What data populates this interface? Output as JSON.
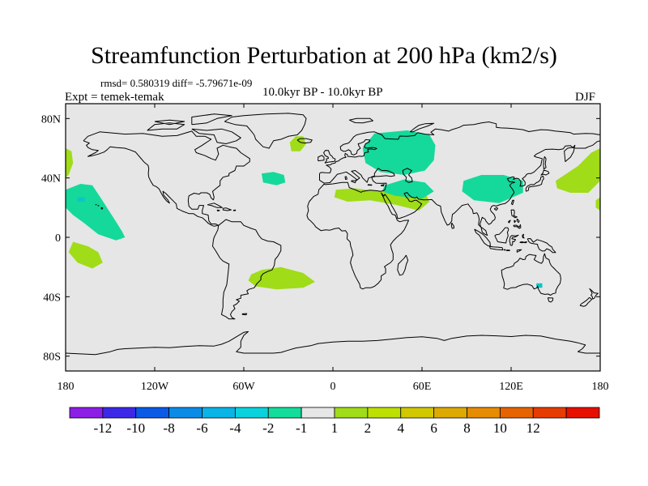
{
  "title": "Streamfunction Perturbation at 200 hPa (km2/s)",
  "stats": "rmsd= 0.580319 diff= -5.79671e-09",
  "experiment": "Expt = temek-temak",
  "period": "10.0kyr BP - 10.0kyr BP",
  "season": "DJF",
  "map": {
    "projection": "cylindrical equidistant",
    "lon_range": [
      -180,
      180
    ],
    "lat_range": [
      -90,
      90
    ],
    "background_color": "#e6e6e6",
    "coastline_color": "#000000",
    "x_ticks": [
      {
        "lon": -180,
        "label": "180"
      },
      {
        "lon": -120,
        "label": "120W"
      },
      {
        "lon": -60,
        "label": "60W"
      },
      {
        "lon": 0,
        "label": "0"
      },
      {
        "lon": 60,
        "label": "60E"
      },
      {
        "lon": 120,
        "label": "120E"
      },
      {
        "lon": 180,
        "label": "180"
      }
    ],
    "y_ticks": [
      {
        "lat": 80,
        "label": "80N"
      },
      {
        "lat": 40,
        "label": "40N"
      },
      {
        "lat": 0,
        "label": "0"
      },
      {
        "lat": -40,
        "label": "40S"
      },
      {
        "lat": -80,
        "label": "80S"
      }
    ],
    "anomalies": [
      {
        "name": "north-pacific-negative",
        "class": "-2 to -1",
        "color": "#14d99a",
        "points": [
          [
            -180,
            32
          ],
          [
            -170,
            36
          ],
          [
            -162,
            35
          ],
          [
            -156,
            26
          ],
          [
            -147,
            12
          ],
          [
            -142,
            4
          ],
          [
            -140,
            0
          ],
          [
            -146,
            -2
          ],
          [
            -158,
            2
          ],
          [
            -168,
            10
          ],
          [
            -175,
            15
          ],
          [
            -180,
            20
          ]
        ]
      },
      {
        "name": "north-pacific-core",
        "class": "-4 to -2",
        "color": "#0fc4c4",
        "points": [
          [
            -172,
            27
          ],
          [
            -167,
            27
          ],
          [
            -167,
            24
          ],
          [
            -172,
            24
          ]
        ]
      },
      {
        "name": "south-pacific-positive",
        "class": "1 to 2",
        "color": "#a0dc18",
        "points": [
          [
            -175,
            -3
          ],
          [
            -165,
            -6
          ],
          [
            -158,
            -10
          ],
          [
            -155,
            -17
          ],
          [
            -162,
            -21
          ],
          [
            -172,
            -17
          ],
          [
            -178,
            -10
          ]
        ]
      },
      {
        "name": "dateline-west-positive",
        "class": "1 to 2",
        "color": "#a0dc18",
        "points": [
          [
            -180,
            60
          ],
          [
            -176,
            58
          ],
          [
            -175,
            50
          ],
          [
            -178,
            42
          ],
          [
            -180,
            40
          ]
        ]
      },
      {
        "name": "greenland-sea-positive",
        "class": "1 to 2",
        "color": "#a0dc18",
        "points": [
          [
            -25,
            68
          ],
          [
            -20,
            68
          ],
          [
            -18,
            63
          ],
          [
            -22,
            58
          ],
          [
            -28,
            58
          ],
          [
            -29,
            64
          ]
        ]
      },
      {
        "name": "mid-atlantic-negative",
        "class": "-2 to -1",
        "color": "#14d99a",
        "points": [
          [
            -48,
            43
          ],
          [
            -40,
            44
          ],
          [
            -33,
            42
          ],
          [
            -32,
            37
          ],
          [
            -38,
            35
          ],
          [
            -47,
            37
          ]
        ]
      },
      {
        "name": "south-atlantic-positive",
        "class": "1 to 2",
        "color": "#a0dc18",
        "points": [
          [
            -55,
            -25
          ],
          [
            -48,
            -22
          ],
          [
            -35,
            -20
          ],
          [
            -20,
            -24
          ],
          [
            -12,
            -30
          ],
          [
            -20,
            -34
          ],
          [
            -38,
            -35
          ],
          [
            -52,
            -33
          ],
          [
            -57,
            -29
          ]
        ]
      },
      {
        "name": "sahara-positive",
        "class": "1 to 2",
        "color": "#a0dc18",
        "points": [
          [
            2,
            32
          ],
          [
            15,
            33
          ],
          [
            30,
            31
          ],
          [
            45,
            33
          ],
          [
            62,
            30
          ],
          [
            65,
            24
          ],
          [
            58,
            18
          ],
          [
            42,
            22
          ],
          [
            25,
            25
          ],
          [
            10,
            24
          ],
          [
            1,
            27
          ]
        ]
      },
      {
        "name": "eurasia-negative",
        "class": "-2 to -1",
        "color": "#14d99a",
        "points": [
          [
            20,
            60
          ],
          [
            28,
            70
          ],
          [
            50,
            72
          ],
          [
            65,
            69
          ],
          [
            69,
            62
          ],
          [
            68,
            52
          ],
          [
            62,
            45
          ],
          [
            48,
            42
          ],
          [
            32,
            44
          ],
          [
            22,
            50
          ]
        ]
      },
      {
        "name": "middle-east-negative",
        "class": "-2 to -1",
        "color": "#14d99a",
        "points": [
          [
            35,
            35
          ],
          [
            48,
            39
          ],
          [
            62,
            37
          ],
          [
            68,
            31
          ],
          [
            60,
            26
          ],
          [
            42,
            28
          ],
          [
            33,
            31
          ]
        ]
      },
      {
        "name": "east-asia-negative",
        "class": "-2 to -1",
        "color": "#14d99a",
        "points": [
          [
            88,
            38
          ],
          [
            100,
            42
          ],
          [
            115,
            42
          ],
          [
            128,
            38
          ],
          [
            128,
            30
          ],
          [
            112,
            23
          ],
          [
            95,
            25
          ],
          [
            87,
            31
          ]
        ]
      },
      {
        "name": "northwest-pacific-positive",
        "class": "1 to 2",
        "color": "#a0dc18",
        "points": [
          [
            150,
            38
          ],
          [
            165,
            48
          ],
          [
            174,
            57
          ],
          [
            180,
            60
          ],
          [
            180,
            38
          ],
          [
            172,
            30
          ],
          [
            160,
            30
          ],
          [
            151,
            33
          ]
        ]
      },
      {
        "name": "east-pacific-edge-positive",
        "class": "1 to 2",
        "color": "#a0dc18",
        "points": [
          [
            180,
            27
          ],
          [
            177,
            25
          ],
          [
            177,
            20
          ],
          [
            180,
            18
          ]
        ]
      },
      {
        "name": "australia-small-negative",
        "class": "-4 to -2",
        "color": "#0fc4c4",
        "points": [
          [
            137,
            -31
          ],
          [
            141,
            -31
          ],
          [
            141,
            -34
          ],
          [
            137,
            -34
          ]
        ]
      }
    ]
  },
  "colorbar": {
    "colors": [
      "#8c1ee6",
      "#3c28e6",
      "#0a5ae6",
      "#0a8ce6",
      "#0ab4e6",
      "#0ad2dc",
      "#14dc9a",
      "#e6e6e6",
      "#a0dc18",
      "#bee000",
      "#d2c800",
      "#dcaa00",
      "#e68c00",
      "#e66400",
      "#e63c00",
      "#e60f00"
    ],
    "labels": [
      "-12",
      "-10",
      "-8",
      "-6",
      "-4",
      "-2",
      "-1",
      "1",
      "2",
      "4",
      "6",
      "8",
      "10",
      "12"
    ]
  }
}
